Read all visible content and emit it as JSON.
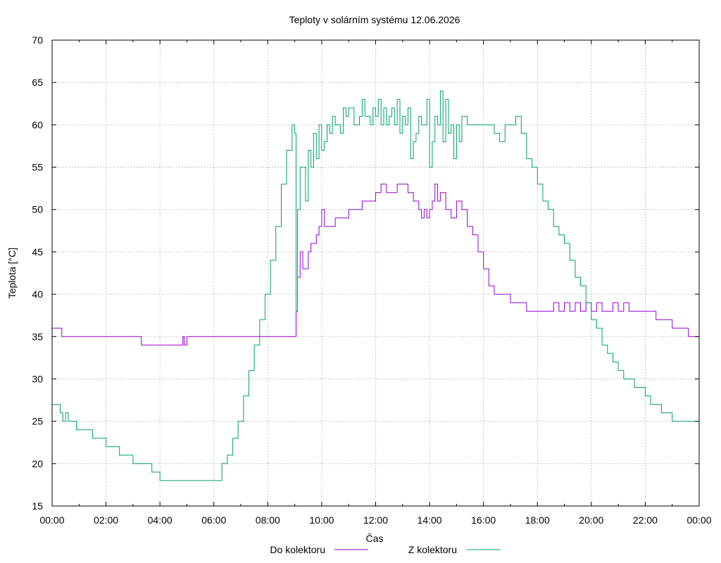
{
  "chart_data": {
    "type": "line",
    "title": "Teploty v solárním systému 12.06.2026",
    "xlabel": "Čas",
    "ylabel": "Teplota [°C]",
    "x_unit": "hours",
    "xlim": [
      0,
      24
    ],
    "ylim": [
      15,
      70
    ],
    "x_ticks": [
      0,
      2,
      4,
      6,
      8,
      10,
      12,
      14,
      16,
      18,
      20,
      22,
      24
    ],
    "x_tick_labels": [
      "00:00",
      "02:00",
      "04:00",
      "06:00",
      "08:00",
      "10:00",
      "12:00",
      "14:00",
      "16:00",
      "18:00",
      "20:00",
      "22:00",
      "00:00"
    ],
    "y_ticks": [
      15,
      20,
      25,
      30,
      35,
      40,
      45,
      50,
      55,
      60,
      65,
      70
    ],
    "y_tick_labels": [
      "15",
      "20",
      "25",
      "30",
      "35",
      "40",
      "45",
      "50",
      "55",
      "60",
      "65",
      "70"
    ],
    "grid": true,
    "legend_position": "bottom",
    "series": [
      {
        "name": "Do kolektoru",
        "color": "#9400d3",
        "x": [
          0,
          0.35,
          0.36,
          3.3,
          3.31,
          4.8,
          4.85,
          4.9,
          5.0,
          9.0,
          9.05,
          9.1,
          9.2,
          9.3,
          9.5,
          9.6,
          9.8,
          9.9,
          10.0,
          10.1,
          10.3,
          10.5,
          10.7,
          11.0,
          11.3,
          11.5,
          11.8,
          12.0,
          12.2,
          12.4,
          12.6,
          12.8,
          13.0,
          13.2,
          13.4,
          13.6,
          13.7,
          13.8,
          13.9,
          14.0,
          14.1,
          14.2,
          14.3,
          14.4,
          14.6,
          14.8,
          15.0,
          15.2,
          15.4,
          15.6,
          15.8,
          16.0,
          16.2,
          16.4,
          16.6,
          17.0,
          17.4,
          17.6,
          18.0,
          18.4,
          18.6,
          18.8,
          19.0,
          19.2,
          19.4,
          19.6,
          19.8,
          20.0,
          20.2,
          20.4,
          20.6,
          20.8,
          21.0,
          21.2,
          21.4,
          21.6,
          21.8,
          22.0,
          22.4,
          22.6,
          23.0,
          23.2,
          23.6,
          24.0
        ],
        "values": [
          36,
          36,
          35,
          35,
          34,
          34,
          35,
          34,
          35,
          35,
          38,
          42,
          45,
          43,
          45,
          46,
          47,
          48,
          50,
          48,
          48,
          49,
          49,
          50,
          50,
          51,
          51,
          52,
          53,
          52,
          52,
          53,
          53,
          52,
          51,
          50,
          49,
          50,
          49,
          50,
          51,
          53,
          51,
          52,
          50,
          49,
          51,
          50,
          48,
          47,
          45,
          43,
          41,
          40,
          40,
          39,
          39,
          38,
          38,
          38,
          39,
          38,
          39,
          38,
          39,
          38,
          39,
          38,
          39,
          38,
          38,
          39,
          38,
          39,
          38,
          38,
          38,
          38,
          37,
          37,
          36,
          36,
          35,
          35
        ]
      },
      {
        "name": "Z kolektoru",
        "color": "#009e73",
        "x": [
          0,
          0.2,
          0.3,
          0.4,
          0.5,
          0.6,
          0.9,
          1.5,
          2.0,
          2.5,
          3.0,
          3.7,
          4.0,
          6.1,
          6.3,
          6.5,
          6.7,
          6.9,
          7.1,
          7.3,
          7.5,
          7.7,
          7.9,
          8.1,
          8.3,
          8.5,
          8.7,
          8.9,
          9.0,
          9.05,
          9.1,
          9.2,
          9.4,
          9.5,
          9.6,
          9.7,
          9.8,
          9.9,
          10.0,
          10.1,
          10.2,
          10.3,
          10.4,
          10.5,
          10.6,
          10.7,
          10.8,
          10.9,
          11.0,
          11.2,
          11.4,
          11.5,
          11.6,
          11.8,
          11.9,
          12.0,
          12.1,
          12.2,
          12.3,
          12.4,
          12.5,
          12.6,
          12.7,
          12.8,
          12.9,
          13.0,
          13.1,
          13.2,
          13.3,
          13.4,
          13.5,
          13.6,
          13.7,
          13.8,
          13.9,
          14.0,
          14.1,
          14.2,
          14.3,
          14.4,
          14.5,
          14.6,
          14.7,
          14.8,
          14.9,
          15.0,
          15.1,
          15.2,
          15.4,
          15.6,
          15.8,
          16.0,
          16.2,
          16.4,
          16.6,
          16.8,
          17.0,
          17.2,
          17.4,
          17.6,
          17.8,
          18.0,
          18.2,
          18.4,
          18.6,
          18.8,
          19.0,
          19.2,
          19.4,
          19.6,
          19.8,
          20.0,
          20.2,
          20.4,
          20.6,
          20.8,
          21.0,
          21.2,
          21.4,
          21.6,
          21.8,
          22.0,
          22.2,
          22.4,
          22.6,
          22.8,
          23.0,
          23.2,
          23.4,
          23.6,
          23.8,
          24.0
        ],
        "values": [
          27,
          27,
          26,
          25,
          26,
          25,
          24,
          23,
          22,
          21,
          20,
          19,
          18,
          18,
          20,
          21,
          23,
          25,
          28,
          31,
          34,
          37,
          40,
          44,
          48,
          53,
          57,
          60,
          59,
          38,
          50,
          55,
          51,
          57,
          55,
          59,
          56,
          60,
          57,
          58,
          60,
          59,
          61,
          60,
          60,
          59,
          62,
          61,
          62,
          60,
          61,
          63,
          61,
          60,
          62,
          61,
          63,
          60,
          62,
          60,
          61,
          62,
          60,
          63,
          59,
          61,
          60,
          62,
          56,
          58,
          59,
          61,
          60,
          60,
          63,
          55,
          58,
          61,
          60,
          64,
          58,
          63,
          59,
          60,
          56,
          60,
          58,
          61,
          60,
          60,
          60,
          60,
          60,
          59,
          58,
          60,
          60,
          61,
          59,
          56,
          55,
          53,
          51,
          50,
          48,
          47,
          46,
          44,
          42,
          41,
          39,
          37,
          36,
          34,
          33,
          32,
          31,
          30,
          30,
          29,
          29,
          28,
          27,
          27,
          26,
          26,
          25,
          25,
          25,
          25,
          25,
          24
        ]
      }
    ]
  }
}
